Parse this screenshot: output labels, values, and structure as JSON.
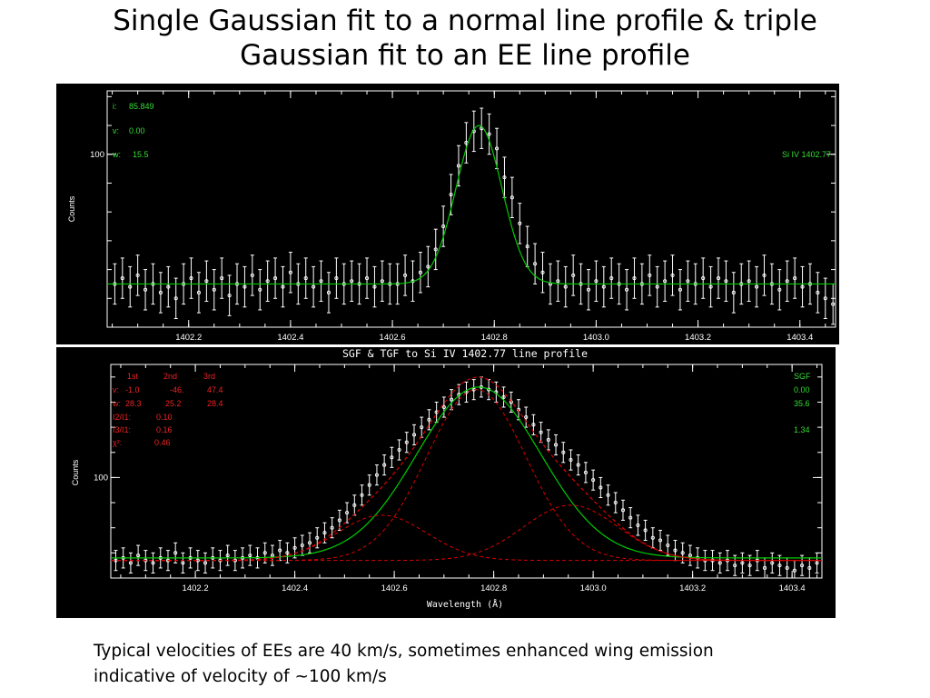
{
  "slide": {
    "title_line1": "Single Gaussian fit to a normal line profile & triple",
    "title_line2": "Gaussian fit to an EE line profile",
    "caption_line1": "Typical velocities of EEs are 40 km/s, sometimes enhanced wing emission",
    "caption_line2": "indicative of velocity of ~100 km/s"
  },
  "colors": {
    "background": "#000000",
    "axes": "#ffffff",
    "data": "#ffffff",
    "fit": "#00cc00",
    "components": "#dd0000",
    "text_green": "#33dd33",
    "text_red": "#ee2222"
  },
  "chart_data": [
    {
      "type": "scatter",
      "title": "",
      "xlabel": "",
      "ylabel": "Counts",
      "xlim": [
        1402.04,
        1403.47
      ],
      "ylim": [
        40,
        122
      ],
      "x_ticks": [
        1402.2,
        1402.4,
        1402.6,
        1402.8,
        1403.0,
        1403.2,
        1403.4
      ],
      "x_tick_labels": [
        "1402.2",
        "1402.4",
        "1402.6",
        "1402.8",
        "1403.0",
        "1403.2",
        "1403.4"
      ],
      "y_ticks": [
        100
      ],
      "y_tick_labels": [
        "100"
      ],
      "x_minor_step": 0.05,
      "y_minor_step": 10,
      "fit_label_i": "i:",
      "fit_value_i": "85.849",
      "fit_label_v": "v:",
      "fit_value_v": "0.00",
      "fit_label_w": "w:",
      "fit_value_w": "15.5",
      "line_label": "Si IV 1402.77",
      "model": {
        "type": "gaussian",
        "background": 55,
        "amplitude": 55,
        "center": 1402.77,
        "sigma": 0.045
      },
      "points": [
        [
          1402.055,
          55,
          7
        ],
        [
          1402.07,
          57,
          7
        ],
        [
          1402.085,
          54,
          7
        ],
        [
          1402.1,
          58,
          7
        ],
        [
          1402.115,
          53,
          7
        ],
        [
          1402.13,
          55,
          7
        ],
        [
          1402.145,
          52,
          7
        ],
        [
          1402.16,
          54,
          7
        ],
        [
          1402.175,
          50,
          7
        ],
        [
          1402.19,
          55,
          7
        ],
        [
          1402.205,
          57,
          7
        ],
        [
          1402.22,
          52,
          7
        ],
        [
          1402.235,
          56,
          7
        ],
        [
          1402.25,
          53,
          7
        ],
        [
          1402.265,
          57,
          7
        ],
        [
          1402.28,
          51,
          7
        ],
        [
          1402.295,
          55,
          7
        ],
        [
          1402.31,
          54,
          7
        ],
        [
          1402.325,
          58,
          7
        ],
        [
          1402.34,
          53,
          7
        ],
        [
          1402.355,
          56,
          7
        ],
        [
          1402.37,
          57,
          7
        ],
        [
          1402.385,
          54,
          7
        ],
        [
          1402.4,
          59,
          7
        ],
        [
          1402.415,
          55,
          7
        ],
        [
          1402.43,
          57,
          7
        ],
        [
          1402.445,
          54,
          7
        ],
        [
          1402.46,
          56,
          7
        ],
        [
          1402.475,
          52,
          7
        ],
        [
          1402.49,
          57,
          7
        ],
        [
          1402.505,
          55,
          7
        ],
        [
          1402.52,
          56,
          7
        ],
        [
          1402.535,
          55,
          7
        ],
        [
          1402.55,
          57,
          7
        ],
        [
          1402.565,
          54,
          7
        ],
        [
          1402.58,
          56,
          7
        ],
        [
          1402.595,
          55,
          7
        ],
        [
          1402.61,
          55,
          7
        ],
        [
          1402.625,
          58,
          7
        ],
        [
          1402.64,
          56,
          7
        ],
        [
          1402.655,
          59,
          7
        ],
        [
          1402.67,
          61,
          7
        ],
        [
          1402.685,
          67,
          7
        ],
        [
          1402.7,
          75,
          7
        ],
        [
          1402.715,
          86,
          7
        ],
        [
          1402.73,
          96,
          7
        ],
        [
          1402.745,
          104,
          7
        ],
        [
          1402.76,
          108,
          7
        ],
        [
          1402.775,
          109,
          7
        ],
        [
          1402.79,
          107,
          7
        ],
        [
          1402.805,
          102,
          7
        ],
        [
          1402.82,
          92,
          7
        ],
        [
          1402.835,
          85,
          7
        ],
        [
          1402.85,
          76,
          7
        ],
        [
          1402.865,
          68,
          7
        ],
        [
          1402.88,
          62,
          7
        ],
        [
          1402.895,
          59,
          7
        ],
        [
          1402.91,
          55,
          7
        ],
        [
          1402.925,
          56,
          7
        ],
        [
          1402.94,
          54,
          7
        ],
        [
          1402.955,
          58,
          7
        ],
        [
          1402.97,
          55,
          7
        ],
        [
          1402.985,
          53,
          7
        ],
        [
          1403.0,
          56,
          7
        ],
        [
          1403.015,
          54,
          7
        ],
        [
          1403.03,
          57,
          7
        ],
        [
          1403.045,
          55,
          7
        ],
        [
          1403.06,
          53,
          7
        ],
        [
          1403.075,
          57,
          7
        ],
        [
          1403.09,
          55,
          7
        ],
        [
          1403.105,
          58,
          7
        ],
        [
          1403.12,
          54,
          7
        ],
        [
          1403.135,
          56,
          7
        ],
        [
          1403.15,
          58,
          7
        ],
        [
          1403.165,
          53,
          7
        ],
        [
          1403.18,
          56,
          7
        ],
        [
          1403.195,
          55,
          7
        ],
        [
          1403.21,
          57,
          7
        ],
        [
          1403.225,
          54,
          7
        ],
        [
          1403.24,
          57,
          7
        ],
        [
          1403.255,
          56,
          7
        ],
        [
          1403.27,
          52,
          7
        ],
        [
          1403.285,
          55,
          7
        ],
        [
          1403.3,
          56,
          7
        ],
        [
          1403.315,
          54,
          7
        ],
        [
          1403.33,
          58,
          7
        ],
        [
          1403.345,
          55,
          7
        ],
        [
          1403.36,
          53,
          7
        ],
        [
          1403.375,
          56,
          7
        ],
        [
          1403.39,
          57,
          7
        ],
        [
          1403.405,
          54,
          7
        ],
        [
          1403.42,
          55,
          7
        ],
        [
          1403.435,
          52,
          7
        ],
        [
          1403.45,
          50,
          7
        ],
        [
          1403.465,
          48,
          7
        ]
      ]
    },
    {
      "type": "scatter",
      "title": "SGF & TGF to Si IV 1402.77 line profile",
      "xlabel": "Wavelength (Å)",
      "ylabel": "Counts",
      "xlim": [
        1402.03,
        1403.46
      ],
      "ylim": [
        60,
        145
      ],
      "x_ticks": [
        1402.2,
        1402.4,
        1402.6,
        1402.8,
        1403.0,
        1403.2,
        1403.4
      ],
      "x_tick_labels": [
        "1402.2",
        "1402.4",
        "1402.6",
        "1402.8",
        "1403.0",
        "1403.2",
        "1403.4"
      ],
      "y_ticks": [
        100
      ],
      "y_tick_labels": [
        "100"
      ],
      "x_minor_step": 0.05,
      "y_minor_step": 10,
      "tgf_header": [
        "1st",
        "2nd",
        "3rd"
      ],
      "tgf_v_label": "v:",
      "tgf_v": [
        "-1.0",
        "-46.",
        "47.4"
      ],
      "tgf_w_label": "w:",
      "tgf_w": [
        "28.3",
        "25.2",
        "28.4"
      ],
      "tgf_ratio_21_label": "I2/I1:",
      "tgf_ratio_21": "0.10",
      "tgf_ratio_31_label": "I3/I1:",
      "tgf_ratio_31": "0.16",
      "tgf_chi_label": "χ²:",
      "tgf_chi": "0.46",
      "sgf_label": "SGF",
      "sgf_v": "0.00",
      "sgf_w": "35.6",
      "sgf_chi": "1.34",
      "model_sgf": {
        "type": "gaussian",
        "background": 68,
        "amplitude": 68,
        "center": 1402.77,
        "sigma": 0.125
      },
      "model_tgf": {
        "background": 67,
        "components": [
          {
            "amplitude": 68,
            "center": 1402.765,
            "sigma": 0.1
          },
          {
            "amplitude": 18,
            "center": 1402.575,
            "sigma": 0.09
          },
          {
            "amplitude": 22,
            "center": 1402.955,
            "sigma": 0.095
          }
        ]
      },
      "points": [
        [
          1402.04,
          67,
          4
        ],
        [
          1402.055,
          68,
          4
        ],
        [
          1402.07,
          66,
          4
        ],
        [
          1402.085,
          69,
          4
        ],
        [
          1402.1,
          67,
          4
        ],
        [
          1402.115,
          66,
          4
        ],
        [
          1402.13,
          68,
          4
        ],
        [
          1402.145,
          67,
          4
        ],
        [
          1402.16,
          70,
          4
        ],
        [
          1402.175,
          66,
          4
        ],
        [
          1402.19,
          68,
          4
        ],
        [
          1402.205,
          67,
          4
        ],
        [
          1402.22,
          66,
          4
        ],
        [
          1402.235,
          68,
          4
        ],
        [
          1402.25,
          67,
          4
        ],
        [
          1402.265,
          69,
          4
        ],
        [
          1402.28,
          67,
          4
        ],
        [
          1402.295,
          68,
          4
        ],
        [
          1402.31,
          69,
          4
        ],
        [
          1402.325,
          68,
          4
        ],
        [
          1402.34,
          70,
          4
        ],
        [
          1402.355,
          69,
          4
        ],
        [
          1402.37,
          71,
          4
        ],
        [
          1402.385,
          70,
          4
        ],
        [
          1402.4,
          72,
          4
        ],
        [
          1402.415,
          73,
          4
        ],
        [
          1402.43,
          74,
          4
        ],
        [
          1402.445,
          76,
          4
        ],
        [
          1402.46,
          78,
          4
        ],
        [
          1402.475,
          80,
          4
        ],
        [
          1402.49,
          83,
          4
        ],
        [
          1402.505,
          86,
          4
        ],
        [
          1402.52,
          89,
          4
        ],
        [
          1402.535,
          93,
          4
        ],
        [
          1402.55,
          97,
          4
        ],
        [
          1402.565,
          101,
          4
        ],
        [
          1402.58,
          105,
          4
        ],
        [
          1402.595,
          108,
          4
        ],
        [
          1402.61,
          111,
          4
        ],
        [
          1402.625,
          114,
          4
        ],
        [
          1402.64,
          117,
          4
        ],
        [
          1402.655,
          120,
          4
        ],
        [
          1402.67,
          123,
          4
        ],
        [
          1402.685,
          126,
          4
        ],
        [
          1402.7,
          128,
          4
        ],
        [
          1402.715,
          131,
          4
        ],
        [
          1402.73,
          133,
          4
        ],
        [
          1402.745,
          134,
          4
        ],
        [
          1402.76,
          135,
          4
        ],
        [
          1402.775,
          136,
          4
        ],
        [
          1402.79,
          135,
          4
        ],
        [
          1402.805,
          134,
          4
        ],
        [
          1402.82,
          132,
          4
        ],
        [
          1402.835,
          130,
          4
        ],
        [
          1402.85,
          127,
          4
        ],
        [
          1402.865,
          124,
          4
        ],
        [
          1402.88,
          121,
          4
        ],
        [
          1402.895,
          118,
          4
        ],
        [
          1402.91,
          115,
          4
        ],
        [
          1402.925,
          113,
          4
        ],
        [
          1402.94,
          110,
          4
        ],
        [
          1402.955,
          107,
          4
        ],
        [
          1402.97,
          105,
          4
        ],
        [
          1402.985,
          102,
          4
        ],
        [
          1403.0,
          99,
          4
        ],
        [
          1403.015,
          96,
          4
        ],
        [
          1403.03,
          93,
          4
        ],
        [
          1403.045,
          90,
          4
        ],
        [
          1403.06,
          87,
          4
        ],
        [
          1403.075,
          84,
          4
        ],
        [
          1403.09,
          81,
          4
        ],
        [
          1403.105,
          79,
          4
        ],
        [
          1403.12,
          76,
          4
        ],
        [
          1403.135,
          75,
          4
        ],
        [
          1403.15,
          73,
          4
        ],
        [
          1403.165,
          71,
          4
        ],
        [
          1403.18,
          70,
          4
        ],
        [
          1403.195,
          69,
          4
        ],
        [
          1403.21,
          68,
          4
        ],
        [
          1403.225,
          67,
          4
        ],
        [
          1403.24,
          67,
          4
        ],
        [
          1403.255,
          66,
          4
        ],
        [
          1403.27,
          67,
          4
        ],
        [
          1403.285,
          65,
          4
        ],
        [
          1403.3,
          66,
          4
        ],
        [
          1403.315,
          65,
          4
        ],
        [
          1403.33,
          67,
          4
        ],
        [
          1403.345,
          64,
          4
        ],
        [
          1403.36,
          66,
          4
        ],
        [
          1403.375,
          65,
          4
        ],
        [
          1403.39,
          64,
          4
        ],
        [
          1403.405,
          63,
          4
        ],
        [
          1403.42,
          65,
          4
        ],
        [
          1403.435,
          64,
          4
        ],
        [
          1403.45,
          66,
          4
        ]
      ]
    }
  ]
}
